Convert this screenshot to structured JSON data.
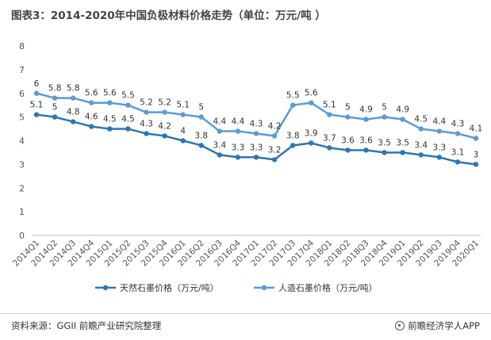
{
  "title": "图表3：2014-2020年中国负极材料价格走势（单位：万元/吨 ）",
  "footer": {
    "source": "资料来源：GGII 前瞻产业研究院整理",
    "brand": "前瞻经济学人APP"
  },
  "chart_data": {
    "type": "line",
    "categories": [
      "2014Q1",
      "2014Q2",
      "2014Q3",
      "2014Q4",
      "2015Q1",
      "2015Q2",
      "2015Q3",
      "2015Q4",
      "2016Q1",
      "2016Q2",
      "2016Q3",
      "2016Q4",
      "2017Q1",
      "2017Q2",
      "2017Q3",
      "2017Q4",
      "2018Q1",
      "2018Q2",
      "2018Q3",
      "2018Q4",
      "2019Q1",
      "2019Q2",
      "2019Q3",
      "2019Q4",
      "2020Q1"
    ],
    "series": [
      {
        "name": "天然石墨价格（万元/吨）",
        "color": "#2e75b6",
        "values": [
          5.1,
          5,
          4.8,
          4.6,
          4.5,
          4.5,
          4.3,
          4.2,
          4,
          3.8,
          3.4,
          3.3,
          3.3,
          3.2,
          3.8,
          3.9,
          3.7,
          3.6,
          3.6,
          3.5,
          3.5,
          3.4,
          3.3,
          3.1,
          3
        ]
      },
      {
        "name": "人造石墨价格（万元/吨）",
        "color": "#5b9bd5",
        "values": [
          6,
          5.8,
          5.8,
          5.6,
          5.6,
          5.5,
          5.2,
          5.2,
          5.1,
          5,
          4.4,
          4.4,
          4.3,
          4.2,
          5.5,
          5.6,
          5.1,
          5,
          4.9,
          5,
          4.9,
          4.5,
          4.4,
          4.3,
          4.1
        ]
      }
    ],
    "ylim": [
      0,
      8
    ],
    "yticks": [
      0,
      1,
      2,
      3,
      4,
      5,
      6,
      7,
      8
    ],
    "grid": false,
    "legend": "bottom"
  }
}
